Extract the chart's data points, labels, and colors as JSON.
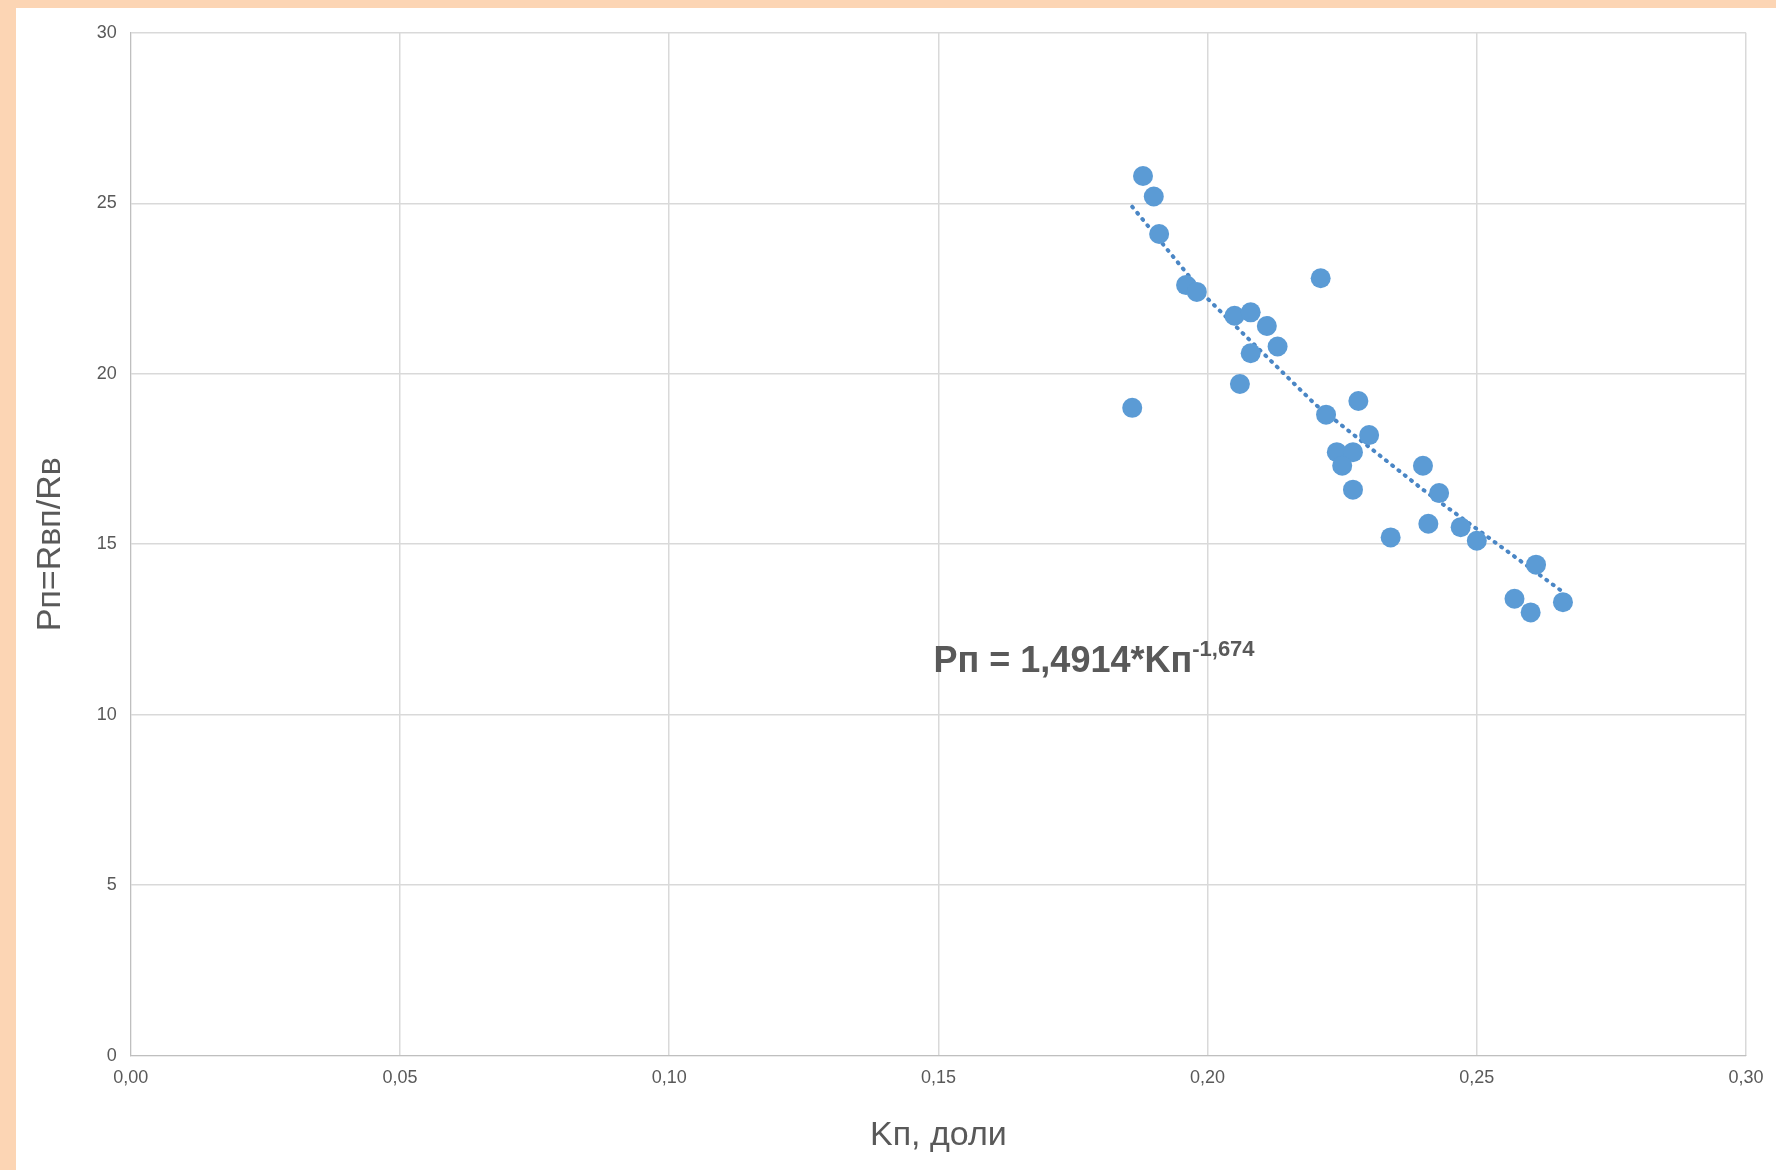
{
  "chart_data": {
    "type": "scatter",
    "xlabel": "Kп, доли",
    "ylabel": "Pп=Rвп/Rв",
    "xlim": [
      0,
      0.3
    ],
    "xticks": [
      {
        "value": 0,
        "label": "0,00"
      },
      {
        "value": 0.05,
        "label": "0,05"
      },
      {
        "value": 0.1,
        "label": "0,10"
      },
      {
        "value": 0.15,
        "label": "0,15"
      },
      {
        "value": 0.2,
        "label": "0,20"
      },
      {
        "value": 0.25,
        "label": "0,25"
      },
      {
        "value": 0.3,
        "label": "0,30"
      }
    ],
    "ylim": [
      0,
      30
    ],
    "yticks": [
      0,
      5,
      10,
      15,
      20,
      25,
      30
    ],
    "grid": true,
    "legend": false,
    "series": [
      {
        "type": "scatter",
        "color": "#5b9bd5",
        "marker": "circle",
        "x": [
          0.188,
          0.19,
          0.191,
          0.196,
          0.198,
          0.221,
          0.205,
          0.208,
          0.211,
          0.213,
          0.208,
          0.206,
          0.186,
          0.222,
          0.228,
          0.23,
          0.224,
          0.227,
          0.225,
          0.227,
          0.24,
          0.243,
          0.241,
          0.247,
          0.25,
          0.234,
          0.261,
          0.257,
          0.26,
          0.266
        ],
        "values": [
          25.8,
          25.2,
          24.1,
          22.6,
          22.4,
          22.8,
          21.7,
          21.8,
          21.4,
          20.8,
          20.6,
          19.7,
          19.0,
          18.8,
          19.2,
          18.2,
          17.7,
          17.7,
          17.3,
          16.6,
          17.3,
          16.5,
          15.6,
          15.5,
          15.1,
          15.2,
          14.4,
          13.4,
          13.0,
          13.3
        ]
      },
      {
        "type": "line",
        "color": "#4a86c5",
        "marker": "none",
        "line_style": "dotted",
        "x": [
          0.186,
          0.2,
          0.22,
          0.24,
          0.266
        ],
        "values": [
          24.9,
          22.2,
          19.1,
          16.6,
          13.6
        ]
      }
    ],
    "annotations": [
      "Pп = 1,4914*Kп$^{-1,674}$"
    ]
  }
}
